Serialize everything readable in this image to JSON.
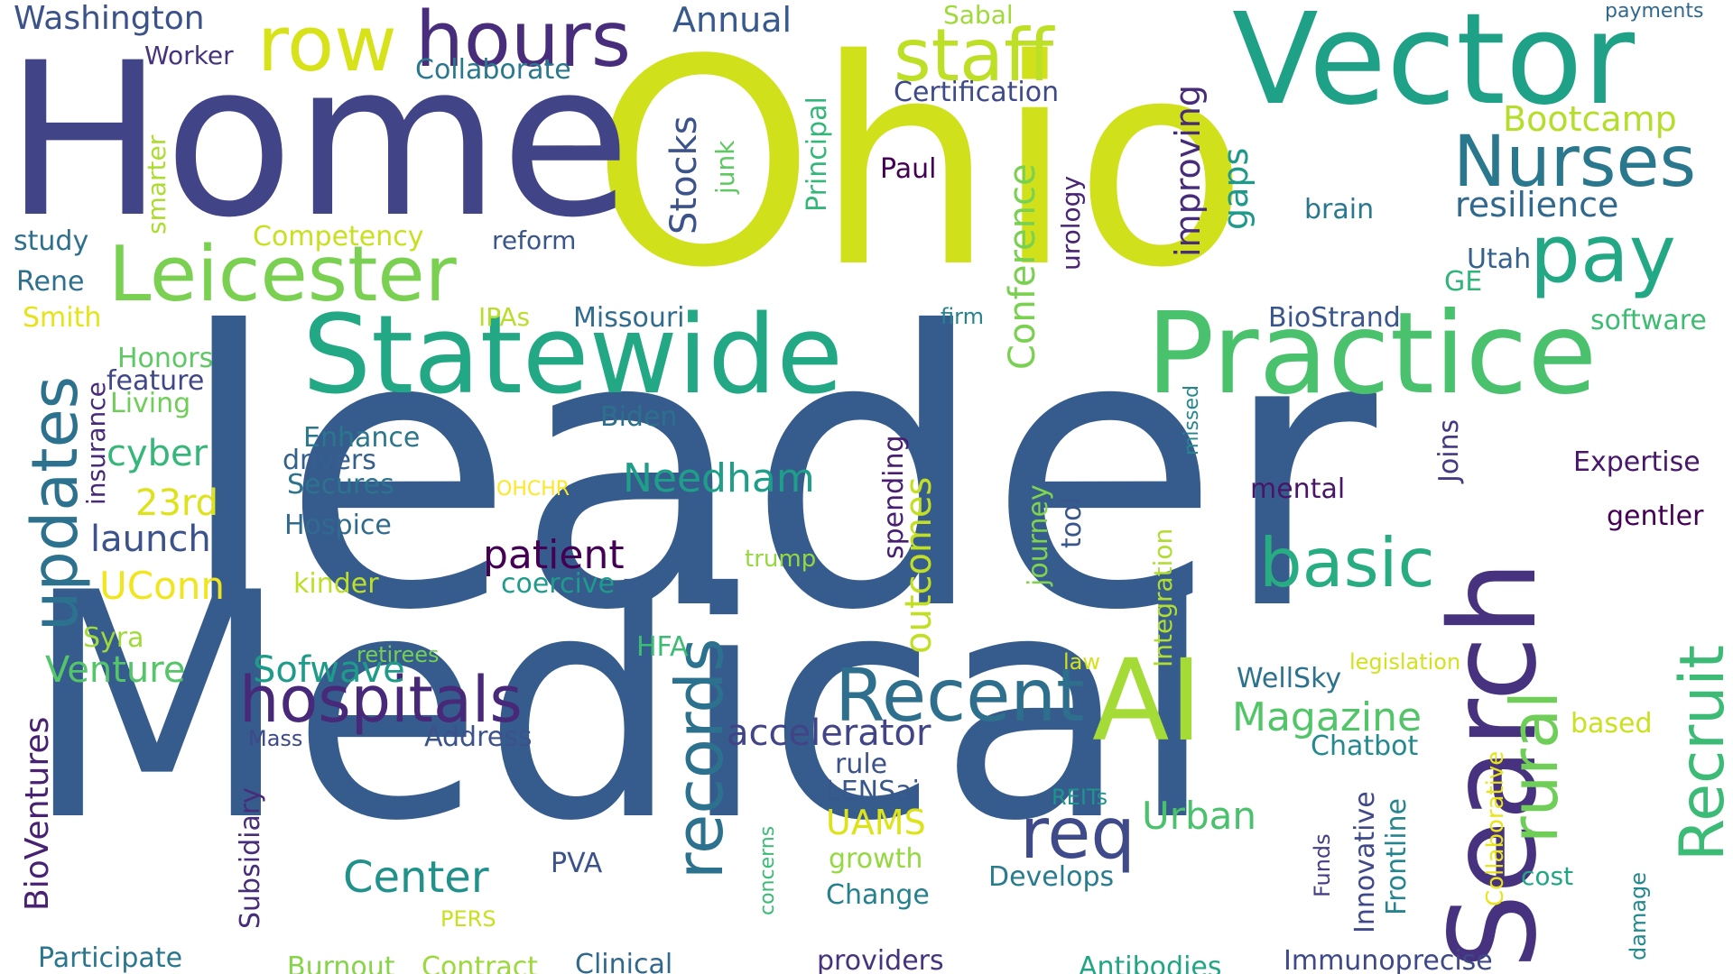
{
  "word_cloud": {
    "words": [
      {
        "text": "leader",
        "color": "#365c8d"
      },
      {
        "text": "Medical",
        "color": "#365c8d"
      },
      {
        "text": "Ohio",
        "color": "#d0e11c"
      },
      {
        "text": "Home",
        "color": "#414487"
      },
      {
        "text": "Vector",
        "color": "#1fa187"
      },
      {
        "text": "Search",
        "color": "#46327e"
      },
      {
        "text": "Practice",
        "color": "#4ac16d"
      },
      {
        "text": "Statewide",
        "color": "#22a884"
      },
      {
        "text": "Leicester",
        "color": "#7ad151"
      },
      {
        "text": "hours",
        "color": "#472d7b"
      },
      {
        "text": "row",
        "color": "#d8e219"
      },
      {
        "text": "staff",
        "color": "#bddf26"
      },
      {
        "text": "pay",
        "color": "#22a884"
      },
      {
        "text": "Nurses",
        "color": "#2a788e"
      },
      {
        "text": "AI",
        "color": "#a5db36"
      },
      {
        "text": "Recent",
        "color": "#2e6f8e"
      },
      {
        "text": "records",
        "color": "#2c728e"
      },
      {
        "text": "rural",
        "color": "#6ece58"
      },
      {
        "text": "Recruit",
        "color": "#3bbb75"
      },
      {
        "text": "basic",
        "color": "#27ad81"
      },
      {
        "text": "req",
        "color": "#3e4a89"
      },
      {
        "text": "hospitals",
        "color": "#482878"
      },
      {
        "text": "updates",
        "color": "#2c728e"
      },
      {
        "text": "Center",
        "color": "#21918c"
      },
      {
        "text": "Magazine",
        "color": "#52c569"
      },
      {
        "text": "patient",
        "color": "#440154"
      },
      {
        "text": "Needham",
        "color": "#1f9e89"
      },
      {
        "text": "accelerator",
        "color": "#414487"
      },
      {
        "text": "outcomes",
        "color": "#c2df23"
      },
      {
        "text": "Conference",
        "color": "#7ad151"
      },
      {
        "text": "Stocks",
        "color": "#3b528b"
      },
      {
        "text": "Bootcamp",
        "color": "#b5de2b"
      },
      {
        "text": "resilience",
        "color": "#31688e"
      },
      {
        "text": "improving",
        "color": "#472c7a"
      },
      {
        "text": "gaps",
        "color": "#1f9a8a"
      },
      {
        "text": "Washington",
        "color": "#3b528b"
      },
      {
        "text": "Annual",
        "color": "#38598c"
      },
      {
        "text": "Certification",
        "color": "#3e4989"
      },
      {
        "text": "Collaborate",
        "color": "#2a788e"
      },
      {
        "text": "Worker",
        "color": "#46337e"
      },
      {
        "text": "Sabal",
        "color": "#a0da39"
      },
      {
        "text": "payments",
        "color": "#31688e"
      },
      {
        "text": "Principal",
        "color": "#35b779"
      },
      {
        "text": "junk",
        "color": "#5ec962"
      },
      {
        "text": "smarter",
        "color": "#addc30"
      },
      {
        "text": "Paul",
        "color": "#440154"
      },
      {
        "text": "urology",
        "color": "#482475"
      },
      {
        "text": "brain",
        "color": "#2a788e"
      },
      {
        "text": "Utah",
        "color": "#34618d"
      },
      {
        "text": "GE",
        "color": "#31b57b"
      },
      {
        "text": "study",
        "color": "#2e6f8e"
      },
      {
        "text": "Competency",
        "color": "#c8e020"
      },
      {
        "text": "reform",
        "color": "#3a548c"
      },
      {
        "text": "Rene",
        "color": "#2d708e"
      },
      {
        "text": "Smith",
        "color": "#e5e419"
      },
      {
        "text": "IPAs",
        "color": "#b8de29"
      },
      {
        "text": "Missouri",
        "color": "#2f6c8e"
      },
      {
        "text": "firm",
        "color": "#25838e"
      },
      {
        "text": "BioStrand",
        "color": "#39568c"
      },
      {
        "text": "software",
        "color": "#3fbc73"
      },
      {
        "text": "Honors",
        "color": "#5ec962"
      },
      {
        "text": "feature",
        "color": "#3f4788"
      },
      {
        "text": "Living",
        "color": "#6ece58"
      },
      {
        "text": "insurance",
        "color": "#472a7a"
      },
      {
        "text": "Biden",
        "color": "#2d708e"
      },
      {
        "text": "Enhance",
        "color": "#2a778e"
      },
      {
        "text": "drivers",
        "color": "#355f8d"
      },
      {
        "text": "Secures",
        "color": "#2c738e"
      },
      {
        "text": "missed",
        "color": "#24878e"
      },
      {
        "text": "Joins",
        "color": "#443983"
      },
      {
        "text": "Expertise",
        "color": "#481769"
      },
      {
        "text": "cyber",
        "color": "#35b779"
      },
      {
        "text": "23rd",
        "color": "#dde318"
      },
      {
        "text": "launch",
        "color": "#3b528b"
      },
      {
        "text": "Hospice",
        "color": "#306a8e"
      },
      {
        "text": "OHCHR",
        "color": "#fde725"
      },
      {
        "text": "spending",
        "color": "#481f70"
      },
      {
        "text": "journey",
        "color": "#7fd34e"
      },
      {
        "text": "tool",
        "color": "#39568c"
      },
      {
        "text": "Integration",
        "color": "#b0dd2f"
      },
      {
        "text": "mental",
        "color": "#481668"
      },
      {
        "text": "gentler",
        "color": "#440154"
      },
      {
        "text": "UConn",
        "color": "#f1e51d"
      },
      {
        "text": "kinder",
        "color": "#bddf26"
      },
      {
        "text": "coercive",
        "color": "#1e9b8a"
      },
      {
        "text": "trump",
        "color": "#95d840"
      },
      {
        "text": "Syra",
        "color": "#a0da39"
      },
      {
        "text": "Venture",
        "color": "#54c568"
      },
      {
        "text": "retirees",
        "color": "#73d056"
      },
      {
        "text": "Sofwave",
        "color": "#1e9c89"
      },
      {
        "text": "HFA",
        "color": "#3dbc74"
      },
      {
        "text": "law",
        "color": "#d5e21a"
      },
      {
        "text": "legislation",
        "color": "#d2e21b"
      },
      {
        "text": "Collaborative",
        "color": "#e7e419"
      },
      {
        "text": "BioVentures",
        "color": "#482173"
      },
      {
        "text": "WellSky",
        "color": "#2c728e"
      },
      {
        "text": "based",
        "color": "#cae11f"
      },
      {
        "text": "Mass",
        "color": "#3e4989"
      },
      {
        "text": "Address",
        "color": "#3b528b"
      },
      {
        "text": "rule",
        "color": "#3b528b"
      },
      {
        "text": "Chatbot",
        "color": "#23898e"
      },
      {
        "text": "Subsidiary",
        "color": "#472c7a"
      },
      {
        "text": "LENSai",
        "color": "#38588c"
      },
      {
        "text": "REITs",
        "color": "#1f948c"
      },
      {
        "text": "Urban",
        "color": "#4ac16d"
      },
      {
        "text": "UAMS",
        "color": "#dde318"
      },
      {
        "text": "growth",
        "color": "#95d840"
      },
      {
        "text": "Innovative",
        "color": "#3f4889"
      },
      {
        "text": "Frontline",
        "color": "#25848e"
      },
      {
        "text": "cost",
        "color": "#21a685"
      },
      {
        "text": "PVA",
        "color": "#3b528b"
      },
      {
        "text": "Develops",
        "color": "#297b8e"
      },
      {
        "text": "Change",
        "color": "#27808e"
      },
      {
        "text": "concerns",
        "color": "#3bbb75"
      },
      {
        "text": "Funds",
        "color": "#433e85"
      },
      {
        "text": "damage",
        "color": "#23898e"
      },
      {
        "text": "PERS",
        "color": "#c8e020"
      },
      {
        "text": "Participate",
        "color": "#2a768e"
      },
      {
        "text": "Burnout",
        "color": "#86d549"
      },
      {
        "text": "Contract",
        "color": "#9bd93c"
      },
      {
        "text": "Clinical",
        "color": "#31688e"
      },
      {
        "text": "providers",
        "color": "#46337e"
      },
      {
        "text": "Antibodies",
        "color": "#21a685"
      },
      {
        "text": "Immunoprecise",
        "color": "#3e4989"
      }
    ]
  }
}
